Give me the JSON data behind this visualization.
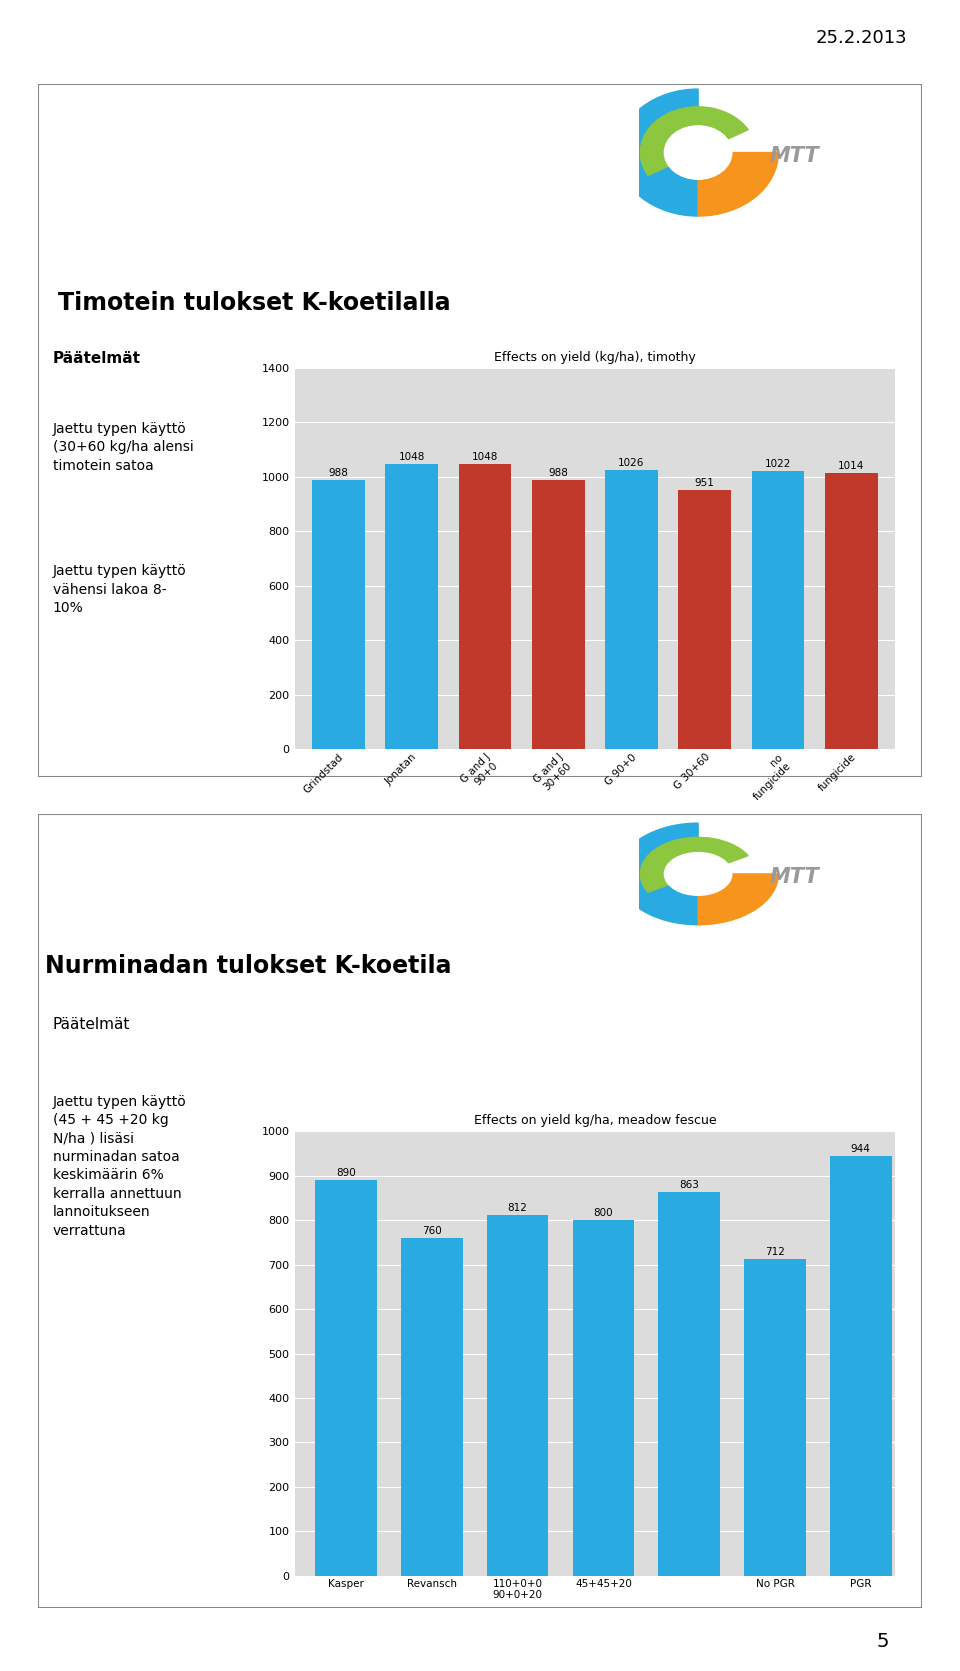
{
  "date_text": "25.2.2013",
  "page_number": "5",
  "panel1": {
    "title": "Timotein tulokset K-koetilalla",
    "chart_title": "Effects on yield (kg/ha), timothy",
    "left_heading": "Päätelmät",
    "left_text1": "Jaettu typen käyttö\n(30+60 kg/ha alensi\ntimotein satoa",
    "left_text2": "Jaettu typen käyttö\nvähensi lakoa 8-\n10%",
    "cat_labels": [
      "Grindstad",
      "Jonatan",
      "G and J 90+0",
      "G and J 30+60",
      "G 90+0",
      "G 30+60",
      "no fungicide",
      "fungicide"
    ],
    "values": [
      988,
      1048,
      1048,
      988,
      1026,
      951,
      1022,
      1014
    ],
    "colors": [
      "#29ABE2",
      "#29ABE2",
      "#C0392B",
      "#C0392B",
      "#29ABE2",
      "#C0392B",
      "#29ABE2",
      "#C0392B"
    ],
    "ylim": [
      0,
      1400
    ],
    "yticks": [
      0,
      200,
      400,
      600,
      800,
      1000,
      1200,
      1400
    ]
  },
  "panel2": {
    "title": "Nurminadan tulokset K-koetila",
    "chart_title": "Effects on yield kg/ha, meadow fescue",
    "left_heading": "Päätelmät",
    "left_text": "Jaettu typen käyttö\n(45 + 45 +20 kg\nN/ha ) lisäsi\nnurminadan satoa\nkeskimäärin 6%\nkerralla annettuun\nlannoitukseen\nverrattuna",
    "cat_labels": [
      "KasperRevansch",
      "110+0+090+0+20",
      "45+45+20",
      "No PGR",
      "PGR",
      "No PGR",
      "PGR"
    ],
    "values": [
      890,
      760,
      812,
      800,
      863,
      712,
      944
    ],
    "colors": [
      "#29ABE2",
      "#29ABE2",
      "#29ABE2",
      "#29ABE2",
      "#29ABE2",
      "#29ABE2",
      "#29ABE2"
    ],
    "ylim": [
      0,
      1000
    ],
    "yticks": [
      0,
      100,
      200,
      300,
      400,
      500,
      600,
      700,
      800,
      900,
      1000
    ]
  },
  "background": "#FFFFFF"
}
